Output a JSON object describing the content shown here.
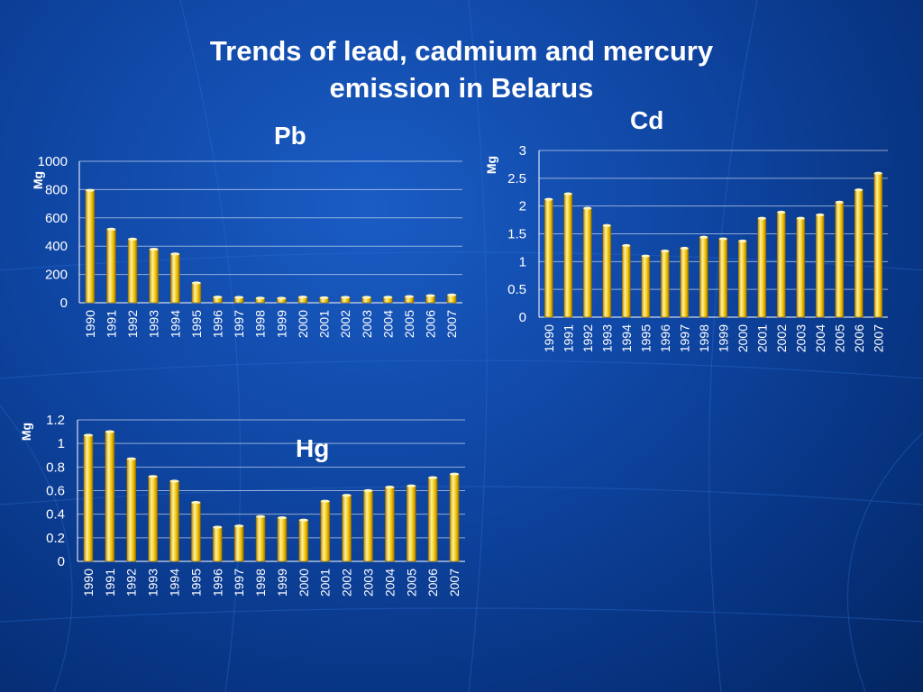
{
  "slide": {
    "title_line1": "Trends of lead, cadmium and mercury",
    "title_line2": "emission in Belarus"
  },
  "colors": {
    "background": "#0e44a0",
    "bar_fill": "#f2c200",
    "bar_highlight": "#fff2a0",
    "text": "#ffffff",
    "grid": "#ffffff"
  },
  "chart_data": [
    {
      "id": "pb",
      "type": "bar",
      "title": "Pb",
      "ylabel": "Mg",
      "xlabel": "",
      "grid": true,
      "ylim": [
        0,
        1000
      ],
      "yticks": [
        0,
        200,
        400,
        600,
        800,
        1000
      ],
      "categories": [
        "1990",
        "1991",
        "1992",
        "1993",
        "1994",
        "1995",
        "1996",
        "1997",
        "1998",
        "1999",
        "2000",
        "2001",
        "2002",
        "2003",
        "2004",
        "2005",
        "2006",
        "2007"
      ],
      "values": [
        795,
        520,
        450,
        378,
        345,
        140,
        40,
        38,
        33,
        32,
        40,
        35,
        38,
        38,
        39,
        44,
        50,
        55
      ]
    },
    {
      "id": "cd",
      "type": "bar",
      "title": "Cd",
      "ylabel": "Mg",
      "xlabel": "",
      "grid": true,
      "ylim": [
        0,
        3
      ],
      "yticks": [
        0,
        0.5,
        1,
        1.5,
        2,
        2.5,
        3
      ],
      "categories": [
        "1990",
        "1991",
        "1992",
        "1993",
        "1994",
        "1995",
        "1996",
        "1997",
        "1998",
        "1999",
        "2000",
        "2001",
        "2002",
        "2003",
        "2004",
        "2005",
        "2006",
        "2007"
      ],
      "values": [
        2.12,
        2.22,
        1.96,
        1.65,
        1.29,
        1.1,
        1.19,
        1.24,
        1.44,
        1.41,
        1.37,
        1.78,
        1.89,
        1.78,
        1.84,
        2.07,
        2.29,
        2.59
      ]
    },
    {
      "id": "hg",
      "type": "bar",
      "title": "Hg",
      "ylabel": "Mg",
      "xlabel": "",
      "grid": true,
      "ylim": [
        0,
        1.2
      ],
      "yticks": [
        0,
        0.2,
        0.4,
        0.6,
        0.8,
        1,
        1.2
      ],
      "categories": [
        "1990",
        "1991",
        "1992",
        "1993",
        "1994",
        "1995",
        "1996",
        "1997",
        "1998",
        "1999",
        "2000",
        "2001",
        "2002",
        "2003",
        "2004",
        "2005",
        "2006",
        "2007"
      ],
      "values": [
        1.07,
        1.1,
        0.87,
        0.72,
        0.68,
        0.5,
        0.29,
        0.3,
        0.38,
        0.37,
        0.35,
        0.51,
        0.56,
        0.6,
        0.63,
        0.64,
        0.71,
        0.74
      ]
    }
  ]
}
